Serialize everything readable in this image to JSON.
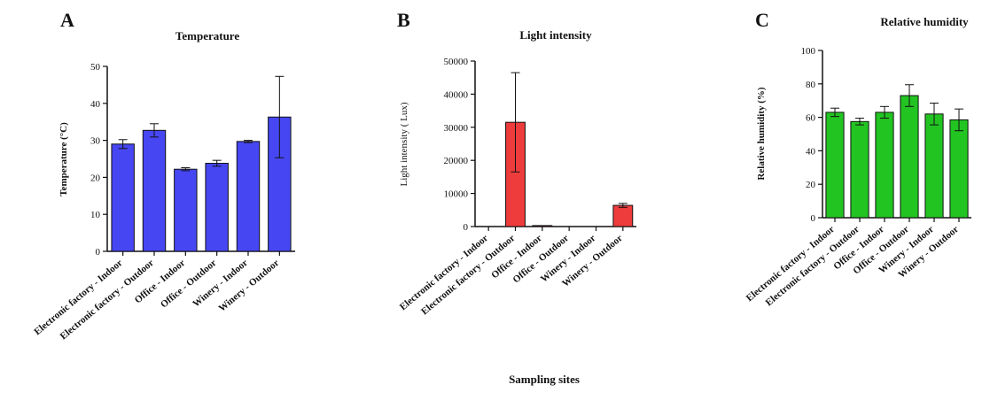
{
  "figure": {
    "shared_xlabel": "Sampling sites"
  },
  "chart_data": [
    {
      "panel": "A",
      "type": "bar",
      "title": "Temperature",
      "ylabel": "Temperature (°C)",
      "xlabel": "",
      "categories": [
        "Electronic factory - Indoor",
        "Electronic factory - Outdoor",
        "Office - Indoor",
        "Office - Outdoor",
        "Winery - Indoor",
        "Winery - Outdoor"
      ],
      "values": [
        29,
        32.7,
        22.2,
        23.8,
        29.7,
        36.3
      ],
      "errors": [
        1.2,
        1.8,
        0.4,
        0.8,
        0.3,
        11
      ],
      "ylim": [
        0,
        50
      ],
      "yticks": [
        0,
        10,
        20,
        30,
        40,
        50
      ],
      "color": "#4646f2",
      "grid": false
    },
    {
      "panel": "B",
      "type": "bar",
      "title": "Light intensity",
      "ylabel": "Light intensity ( Lux)",
      "xlabel": "",
      "categories": [
        "Electronic factory - Indoor",
        "Electronic factory - Outdoor",
        "Office - Indoor",
        "Office - Outdoor",
        "Winery - Indoor",
        "Winery - Outdoor"
      ],
      "values": [
        0,
        31500,
        300,
        0,
        0,
        6400
      ],
      "errors": [
        0,
        15000,
        0,
        0,
        0,
        600
      ],
      "ylim": [
        0,
        50000
      ],
      "yticks": [
        0,
        10000,
        20000,
        30000,
        40000,
        50000
      ],
      "color": "#ee3b3b",
      "grid": false
    },
    {
      "panel": "C",
      "type": "bar",
      "title": "Relative humidity",
      "ylabel": "Relative humidity (%)",
      "xlabel": "",
      "categories": [
        "Electronic factory - Indoor",
        "Electronic factory - Outdoor",
        "Office - Indoor",
        "Office - Outdoor",
        "Winery - Indoor",
        "Winery - Outdoor"
      ],
      "values": [
        63,
        57.5,
        63,
        73,
        62,
        58.5
      ],
      "errors": [
        2.5,
        2,
        3.5,
        6.5,
        6.5,
        6.5
      ],
      "ylim": [
        0,
        100
      ],
      "yticks": [
        0,
        20,
        40,
        60,
        80,
        100
      ],
      "color": "#22c422",
      "grid": false
    }
  ]
}
